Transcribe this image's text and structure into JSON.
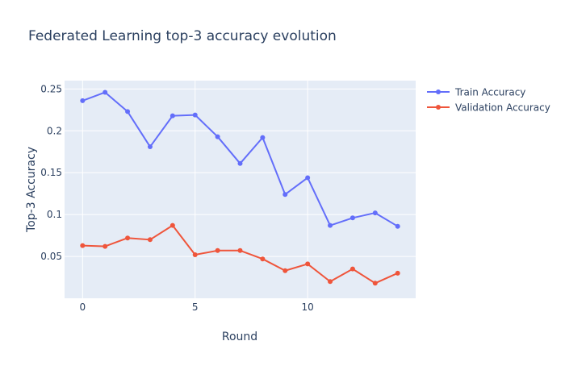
{
  "chart_data": {
    "type": "line",
    "title": "Federated Learning top-3 accuracy evolution",
    "xlabel": "Round",
    "ylabel": "Top-3 Accuracy",
    "xlim": [
      -0.8,
      14.8
    ],
    "ylim": [
      0.0,
      0.26
    ],
    "xticks": [
      0,
      5,
      10
    ],
    "xtick_labels": [
      "0",
      "5",
      "10"
    ],
    "yticks": [
      0.05,
      0.1,
      0.15,
      0.2,
      0.25
    ],
    "ytick_labels": [
      "0.05",
      "0.1",
      "0.15",
      "0.2",
      "0.25"
    ],
    "grid": true,
    "legend_position": "top-right outside",
    "x": [
      0,
      1,
      2,
      3,
      4,
      5,
      6,
      7,
      8,
      9,
      10,
      11,
      12,
      13,
      14
    ],
    "series": [
      {
        "name": "Train Accuracy",
        "color": "#636efa",
        "values": [
          0.236,
          0.246,
          0.223,
          0.181,
          0.218,
          0.219,
          0.193,
          0.161,
          0.192,
          0.124,
          0.144,
          0.087,
          0.096,
          0.102,
          0.086
        ]
      },
      {
        "name": "Validation Accuracy",
        "color": "#ef553b",
        "values": [
          0.063,
          0.062,
          0.072,
          0.07,
          0.087,
          0.052,
          0.057,
          0.057,
          0.047,
          0.033,
          0.041,
          0.02,
          0.035,
          0.018,
          0.03
        ]
      }
    ],
    "colors": {
      "plot_bg": "#e5ecf6",
      "grid": "#ffffff",
      "text": "#2a3f5f",
      "title": "#2a3f5f"
    }
  }
}
